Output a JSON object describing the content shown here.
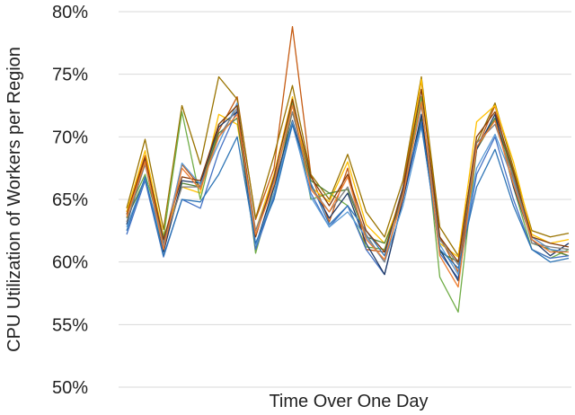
{
  "chart_data": {
    "type": "line",
    "title": "",
    "xlabel": "Time Over One Day",
    "ylabel": "CPU Utilization of Workers per Region",
    "ylim": [
      50,
      80
    ],
    "yticks": [
      50,
      55,
      60,
      65,
      70,
      75,
      80
    ],
    "ytick_labels": [
      "50%",
      "55%",
      "60%",
      "65%",
      "70%",
      "75%",
      "80%"
    ],
    "grid": true,
    "legend": "none",
    "x": [
      1,
      2,
      3,
      4,
      5,
      6,
      7,
      8,
      9,
      10,
      11,
      12,
      13,
      14,
      15,
      16,
      17,
      18,
      19,
      20,
      21,
      22,
      23,
      24,
      25
    ],
    "series": [
      {
        "color": "#C55A11",
        "values": [
          64.0,
          68.5,
          61.5,
          67.8,
          66.0,
          70.5,
          73.2,
          63.4,
          67.5,
          78.8,
          67.0,
          63.2,
          67.5,
          61.0,
          60.8,
          66.0,
          74.5,
          62.0,
          59.2,
          69.0,
          72.5,
          66.5,
          62.0,
          61.0,
          60.5
        ]
      },
      {
        "color": "#997300",
        "values": [
          64.3,
          69.8,
          62.6,
          72.5,
          67.8,
          74.8,
          73.0,
          63.5,
          68.5,
          74.1,
          67.0,
          65.0,
          68.6,
          64.0,
          62.0,
          66.5,
          74.8,
          62.8,
          60.5,
          69.5,
          72.7,
          67.5,
          62.5,
          62.0,
          62.3
        ]
      },
      {
        "color": "#FFC000",
        "values": [
          64.0,
          68.9,
          62.0,
          66.0,
          65.5,
          71.8,
          71.0,
          62.5,
          67.0,
          73.2,
          66.0,
          64.8,
          68.0,
          63.0,
          61.5,
          65.5,
          74.6,
          61.5,
          60.4,
          71.2,
          72.5,
          68.0,
          62.2,
          61.5,
          61.8
        ]
      },
      {
        "color": "#70AD47",
        "values": [
          63.8,
          67.0,
          62.0,
          72.0,
          65.0,
          71.0,
          72.5,
          60.7,
          66.0,
          72.8,
          65.0,
          65.5,
          64.5,
          61.2,
          61.0,
          65.5,
          73.2,
          58.8,
          56.0,
          69.0,
          71.5,
          66.0,
          61.0,
          60.3,
          61.0
        ]
      },
      {
        "color": "#548235",
        "values": [
          63.5,
          66.6,
          61.0,
          66.3,
          66.0,
          70.3,
          71.5,
          61.0,
          65.5,
          72.0,
          66.5,
          65.5,
          65.8,
          62.0,
          61.5,
          65.0,
          71.5,
          60.8,
          60.0,
          69.0,
          71.5,
          67.0,
          61.5,
          61.0,
          60.5
        ]
      },
      {
        "color": "#4472C4",
        "values": [
          62.2,
          66.5,
          60.4,
          65.0,
          64.3,
          68.8,
          72.1,
          61.0,
          65.2,
          71.0,
          65.5,
          62.8,
          64.5,
          61.0,
          59.0,
          65.0,
          71.2,
          60.7,
          58.7,
          67.0,
          70.0,
          65.0,
          61.0,
          60.3,
          60.5
        ]
      },
      {
        "color": "#1F3864",
        "values": [
          63.0,
          68.0,
          60.8,
          66.5,
          66.3,
          70.8,
          72.0,
          61.3,
          66.0,
          71.3,
          66.2,
          63.5,
          65.5,
          61.5,
          59.0,
          65.0,
          71.8,
          61.0,
          58.5,
          69.0,
          71.8,
          66.0,
          61.8,
          60.5,
          61.5
        ]
      },
      {
        "color": "#5B9BD5",
        "values": [
          62.8,
          66.7,
          61.2,
          67.9,
          66.2,
          69.5,
          72.7,
          61.3,
          65.5,
          71.2,
          65.2,
          62.8,
          64.0,
          62.0,
          60.0,
          64.5,
          70.8,
          61.4,
          59.0,
          67.5,
          70.2,
          66.5,
          62.0,
          61.0,
          60.8
        ]
      },
      {
        "color": "#2E75B6",
        "values": [
          62.5,
          66.8,
          60.5,
          65.0,
          64.8,
          67.0,
          70.0,
          61.5,
          65.0,
          71.0,
          66.3,
          63.0,
          64.5,
          62.5,
          60.5,
          66.0,
          71.0,
          61.0,
          59.5,
          66.0,
          69.0,
          64.5,
          61.0,
          60.0,
          60.3
        ]
      },
      {
        "color": "#808080",
        "values": [
          63.2,
          67.8,
          61.5,
          66.0,
          66.0,
          70.0,
          72.3,
          62.5,
          66.5,
          72.0,
          66.0,
          64.0,
          66.0,
          62.2,
          60.0,
          65.5,
          72.5,
          61.8,
          59.8,
          69.5,
          71.0,
          66.8,
          61.5,
          61.2,
          61.0
        ]
      },
      {
        "color": "#843C0C",
        "values": [
          63.8,
          68.3,
          61.8,
          66.8,
          66.5,
          71.0,
          72.5,
          62.0,
          66.8,
          73.0,
          66.8,
          64.5,
          67.0,
          62.5,
          60.8,
          65.8,
          73.8,
          62.0,
          60.0,
          70.0,
          72.0,
          67.2,
          62.0,
          61.5,
          61.2
        ]
      },
      {
        "color": "#ED7D31",
        "values": [
          63.6,
          68.0,
          61.0,
          67.5,
          65.8,
          70.0,
          71.8,
          62.2,
          66.2,
          72.5,
          65.8,
          64.0,
          66.8,
          61.8,
          60.2,
          65.2,
          72.8,
          60.5,
          58.0,
          69.2,
          71.3,
          66.2,
          61.8,
          60.8,
          60.8
        ]
      }
    ]
  }
}
